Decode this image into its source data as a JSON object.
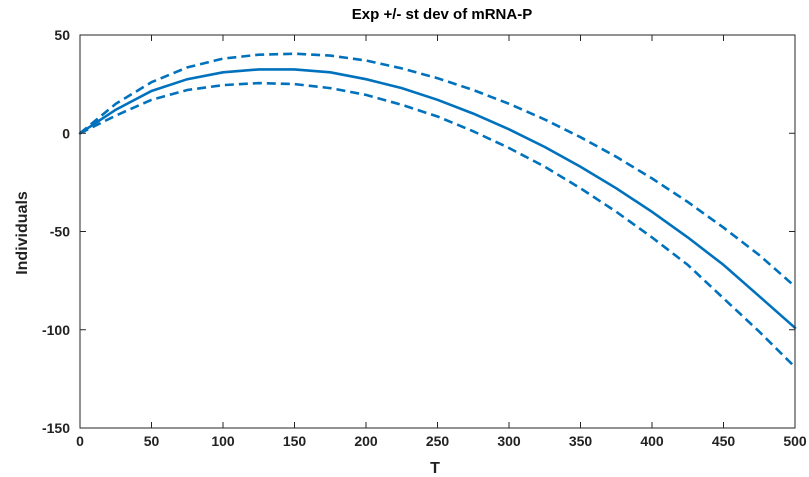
{
  "chart_data": {
    "type": "line",
    "title": "Exp +/- st dev of mRNA-P",
    "xlabel": "T",
    "ylabel": "Individuals",
    "xlim": [
      0,
      500
    ],
    "ylim": [
      -150,
      50
    ],
    "xticks": [
      0,
      50,
      100,
      150,
      200,
      250,
      300,
      350,
      400,
      450,
      500
    ],
    "yticks": [
      50,
      0,
      -50,
      -100,
      -150
    ],
    "grid": false,
    "legend": "none",
    "color": "#0072BD",
    "x": [
      0,
      25,
      50,
      75,
      100,
      125,
      150,
      175,
      200,
      225,
      250,
      275,
      300,
      325,
      350,
      375,
      400,
      425,
      450,
      475,
      500
    ],
    "series": [
      {
        "style": "solid",
        "values": [
          0,
          12,
          21.5,
          27.5,
          31,
          32.5,
          32.5,
          31,
          27.5,
          23,
          17,
          10,
          2,
          -7,
          -17,
          -28,
          -40,
          -53,
          -67,
          -83,
          -99
        ]
      },
      {
        "style": "dashed",
        "values": [
          0,
          15,
          26,
          33.5,
          38,
          40,
          40.5,
          39.5,
          37,
          33,
          28,
          22,
          15,
          7,
          -2,
          -12,
          -23,
          -35,
          -48,
          -62,
          -78
        ]
      },
      {
        "style": "dashed",
        "values": [
          0,
          9,
          17,
          22,
          24.5,
          25.5,
          25,
          23,
          19.5,
          14.5,
          8.5,
          1,
          -7.5,
          -17,
          -28,
          -40,
          -53,
          -67,
          -84,
          -101,
          -119
        ]
      }
    ]
  }
}
